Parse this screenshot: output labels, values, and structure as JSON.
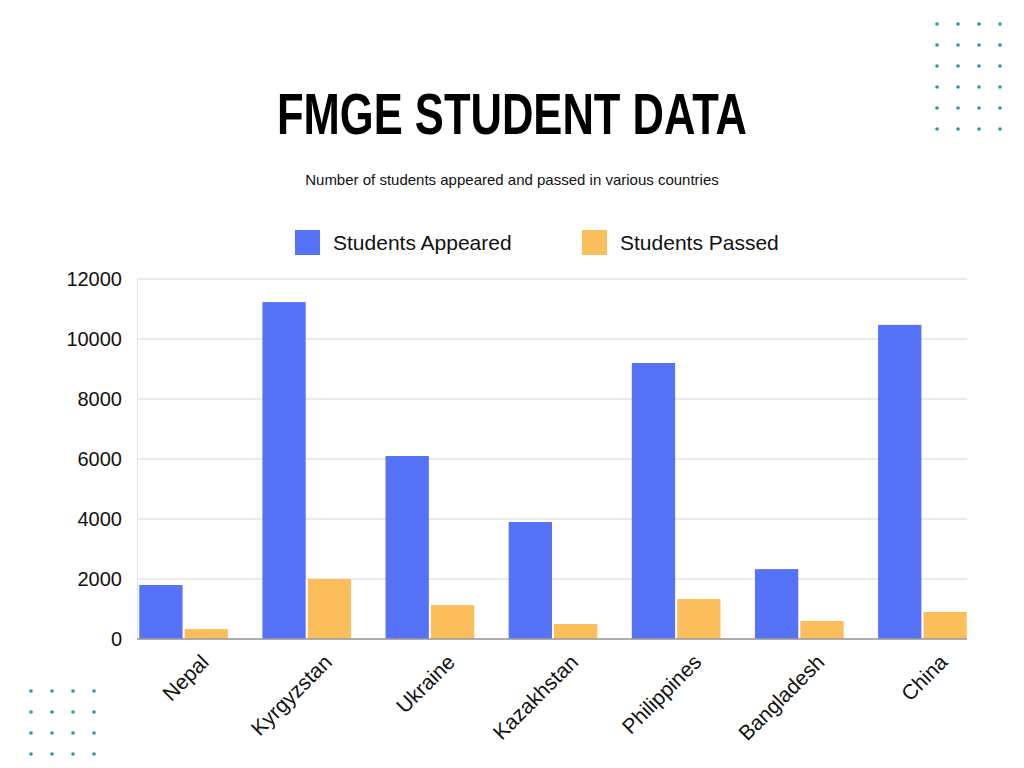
{
  "chart_data": {
    "type": "bar",
    "title": "FMGE STUDENT DATA",
    "subtitle": "Number of students appeared and passed in various countries",
    "categories": [
      "Nepal",
      "Kyrgyzstan",
      "Ukraine",
      "Kazakhstan",
      "Philippines",
      "Bangladesh",
      "China"
    ],
    "series": [
      {
        "name": "Students Appeared",
        "color": "#5673f7",
        "values": [
          1800,
          11230,
          6100,
          3900,
          9200,
          2330,
          10470
        ]
      },
      {
        "name": "Students Passed",
        "color": "#fbbe5b",
        "values": [
          330,
          2000,
          1130,
          500,
          1330,
          600,
          900
        ]
      }
    ],
    "ylim": [
      0,
      12000
    ],
    "yticks": [
      0,
      2000,
      4000,
      6000,
      8000,
      10000,
      12000
    ],
    "grid": true,
    "legend": "top"
  }
}
